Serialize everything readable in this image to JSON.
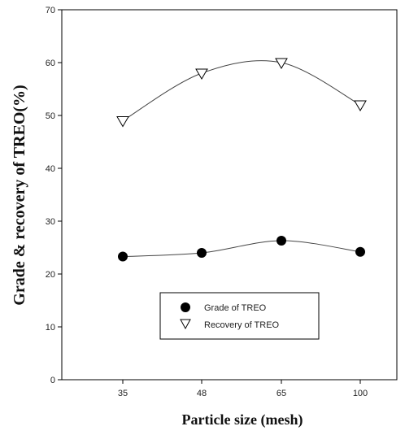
{
  "chart_data": {
    "type": "line",
    "title": "",
    "xlabel": "Particle size (mesh)",
    "ylabel": "Grade & recovery of TREO(%)",
    "categories": [
      "35",
      "48",
      "65",
      "100"
    ],
    "ylim": [
      0,
      70
    ],
    "yticks": [
      "0",
      "10",
      "20",
      "30",
      "40",
      "50",
      "60",
      "70"
    ],
    "grid": false,
    "legend_position": "lower-center",
    "series": [
      {
        "name": "Grade of TREO",
        "marker": "filled-circle",
        "values": [
          23.3,
          24.0,
          26.3,
          24.2
        ]
      },
      {
        "name": "Recovery of TREO",
        "marker": "open-triangle-down",
        "values": [
          49.0,
          58.0,
          60.0,
          52.0
        ]
      }
    ]
  }
}
